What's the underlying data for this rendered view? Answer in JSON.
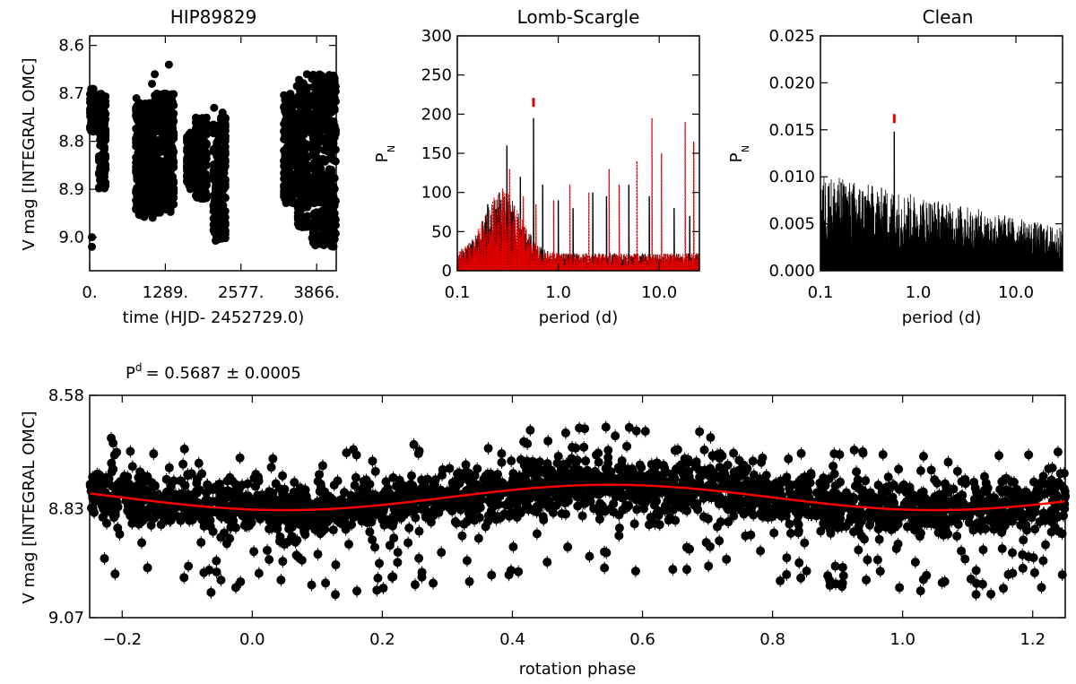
{
  "chart_data": [
    {
      "id": "lightcurve",
      "type": "scatter",
      "title": "HIP89829",
      "xlabel": "time (HJD- 2452729.0)",
      "ylabel": "V mag [INTEGRAL OMC]",
      "xlim": [
        0,
        4200
      ],
      "ylim": [
        9.07,
        8.58
      ],
      "y_inverted": true,
      "xticks": [
        0,
        1289,
        2577,
        3866
      ],
      "xtick_labels": [
        "0.",
        "1289.",
        "2577.",
        "3866."
      ],
      "yticks": [
        8.6,
        8.7,
        8.8,
        8.9,
        9.0
      ],
      "ytick_labels": [
        "8.6",
        "8.7",
        "8.8",
        "8.9",
        "9.0"
      ],
      "marker_color": "#000000",
      "clusters": [
        {
          "x_range": [
            0,
            90
          ],
          "y_range": [
            8.69,
            8.78
          ],
          "outliers": [
            9.0,
            9.02
          ]
        },
        {
          "x_range": [
            150,
            280
          ],
          "y_range": [
            8.7,
            8.9
          ]
        },
        {
          "x_range": [
            780,
            1100
          ],
          "y_range": [
            8.72,
            8.96
          ],
          "outliers": [
            8.68,
            8.71
          ]
        },
        {
          "x_range": [
            1100,
            1440
          ],
          "y_range": [
            8.7,
            8.95
          ],
          "outliers": [
            8.64,
            8.66
          ]
        },
        {
          "x_range": [
            1650,
            1780
          ],
          "y_range": [
            8.78,
            8.9
          ]
        },
        {
          "x_range": [
            1800,
            2000
          ],
          "y_range": [
            8.75,
            8.92
          ]
        },
        {
          "x_range": [
            2100,
            2320
          ],
          "y_range": [
            8.75,
            9.01
          ],
          "outliers": [
            8.73,
            8.74
          ]
        },
        {
          "x_range": [
            3300,
            3500
          ],
          "y_range": [
            8.7,
            8.93
          ]
        },
        {
          "x_range": [
            3520,
            3720
          ],
          "y_range": [
            8.67,
            8.98
          ],
          "outliers": [
            8.66
          ]
        },
        {
          "x_range": [
            3780,
            4200
          ],
          "y_range": [
            8.66,
            9.02
          ]
        }
      ]
    },
    {
      "id": "lomb-scargle",
      "type": "line",
      "title": "Lomb-Scargle",
      "xlabel": "period (d)",
      "ylabel": "P",
      "ylabel_sub": "N",
      "x_scale": "log",
      "xlim": [
        0.1,
        25
      ],
      "ylim": [
        0,
        300
      ],
      "xticks": [
        0.1,
        1.0,
        10.0
      ],
      "xtick_labels": [
        "0.1",
        "1.0",
        "10.0"
      ],
      "yticks": [
        0,
        50,
        100,
        150,
        200,
        250,
        300
      ],
      "ytick_labels": [
        "0",
        "50",
        "100",
        "150",
        "200",
        "250",
        "300"
      ],
      "series": [
        {
          "style": "solid",
          "color": "#000000",
          "peaks": [
            [
              0.5687,
              195
            ],
            [
              0.42,
              120
            ],
            [
              0.31,
              160
            ],
            [
              0.26,
              100
            ],
            [
              0.2,
              85
            ],
            [
              0.7,
              110
            ],
            [
              1.0,
              90
            ],
            [
              1.4,
              80
            ],
            [
              2.2,
              100
            ],
            [
              3.0,
              95
            ],
            [
              5.0,
              110
            ],
            [
              8.0,
              95
            ],
            [
              14.0,
              80
            ],
            [
              20.0,
              70
            ]
          ]
        },
        {
          "style": "dotted",
          "color": "#e00000",
          "peaks": [
            [
              0.33,
              130
            ],
            [
              0.28,
              105
            ],
            [
              0.45,
              95
            ],
            [
              0.6,
              85
            ],
            [
              0.9,
              90
            ],
            [
              1.3,
              110
            ],
            [
              2.0,
              100
            ],
            [
              3.2,
              130
            ],
            [
              4.0,
              110
            ],
            [
              6.0,
              140
            ],
            [
              8.5,
              195
            ],
            [
              10.5,
              150
            ],
            [
              18.0,
              190
            ],
            [
              22.0,
              165
            ]
          ]
        }
      ],
      "best_period_marker": {
        "period": 0.5687,
        "value": 215,
        "color": "#e00000"
      }
    },
    {
      "id": "clean",
      "type": "line",
      "title": "Clean",
      "xlabel": "period (d)",
      "ylabel": "P",
      "ylabel_sub": "N",
      "x_scale": "log",
      "xlim": [
        0.1,
        30
      ],
      "ylim": [
        0,
        0.025
      ],
      "xticks": [
        0.1,
        1.0,
        10.0
      ],
      "xtick_labels": [
        "0.1",
        "1.0",
        "10.0"
      ],
      "yticks": [
        0,
        0.005,
        0.01,
        0.015,
        0.02,
        0.025
      ],
      "ytick_labels": [
        "0.000",
        "0.005",
        "0.010",
        "0.015",
        "0.020",
        "0.025"
      ],
      "series": [
        {
          "style": "solid",
          "color": "#000000",
          "peaks": [
            [
              0.5687,
              0.0148
            ],
            [
              0.12,
              0.009
            ],
            [
              0.15,
              0.0085
            ],
            [
              0.2,
              0.008
            ],
            [
              0.3,
              0.0075
            ],
            [
              0.45,
              0.008
            ],
            [
              0.8,
              0.0065
            ],
            [
              1.5,
              0.006
            ],
            [
              3.0,
              0.0055
            ],
            [
              6.0,
              0.0045
            ],
            [
              12.0,
              0.004
            ]
          ]
        }
      ],
      "best_period_marker": {
        "period": 0.5687,
        "value": 0.0162,
        "color": "#e00000"
      }
    },
    {
      "id": "phase-plot",
      "type": "scatter",
      "title": "P",
      "title_superscript": "d",
      "title_value": "= 0.5687 ± 0.0005",
      "xlabel": "rotation phase",
      "ylabel": "V mag [INTEGRAL OMC]",
      "xlim": [
        -0.25,
        1.25
      ],
      "ylim": [
        9.07,
        8.58
      ],
      "y_inverted": true,
      "xticks": [
        -0.2,
        0.0,
        0.2,
        0.4,
        0.6,
        0.8,
        1.0,
        1.2
      ],
      "xtick_labels": [
        "−0.2",
        "0.0",
        "0.2",
        "0.4",
        "0.6",
        "0.8",
        "1.0",
        "1.2"
      ],
      "yticks": [
        8.58,
        8.83,
        9.07
      ],
      "ytick_labels": [
        "8.58",
        "8.83",
        "9.07"
      ],
      "marker_color": "#000000",
      "period_days": 0.5687,
      "period_error": 0.0005,
      "fit": {
        "type": "sinusoid",
        "color": "#ff0000",
        "mean": 8.805,
        "amplitude": 0.028,
        "phase_of_min_mag": 0.55
      },
      "scatter_band": {
        "mean": 8.805,
        "core_halfwidth": 0.05,
        "outer_halfwidth": 0.16
      }
    }
  ]
}
